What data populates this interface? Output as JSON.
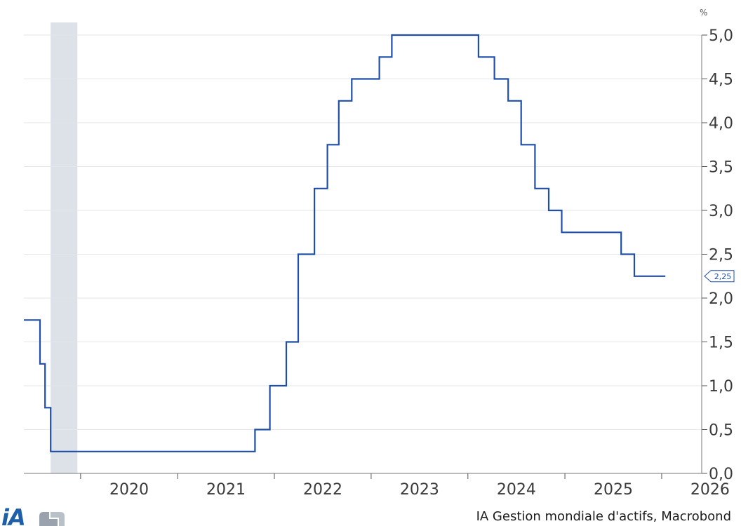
{
  "chart_data": {
    "type": "line",
    "step": true,
    "unit": "%",
    "series": [
      {
        "color": "#1f4fa8",
        "points": [
          [
            "2019-06-01",
            1.75
          ],
          [
            "2019-08-01",
            1.75
          ],
          [
            "2019-08-01",
            1.25
          ],
          [
            "2019-08-20",
            1.25
          ],
          [
            "2019-08-20",
            0.75
          ],
          [
            "2019-09-10",
            0.75
          ],
          [
            "2019-09-10",
            0.25
          ],
          [
            "2021-10-20",
            0.25
          ],
          [
            "2021-10-20",
            0.5
          ],
          [
            "2021-12-15",
            0.5
          ],
          [
            "2021-12-15",
            1.0
          ],
          [
            "2022-02-15",
            1.0
          ],
          [
            "2022-02-15",
            1.5
          ],
          [
            "2022-04-01",
            1.5
          ],
          [
            "2022-04-01",
            2.5
          ],
          [
            "2022-06-01",
            2.5
          ],
          [
            "2022-06-01",
            3.25
          ],
          [
            "2022-07-20",
            3.25
          ],
          [
            "2022-07-20",
            3.75
          ],
          [
            "2022-09-01",
            3.75
          ],
          [
            "2022-09-01",
            4.25
          ],
          [
            "2022-10-20",
            4.25
          ],
          [
            "2022-10-20",
            4.5
          ],
          [
            "2023-02-01",
            4.5
          ],
          [
            "2023-02-01",
            4.75
          ],
          [
            "2023-03-20",
            4.75
          ],
          [
            "2023-03-20",
            5.0
          ],
          [
            "2024-02-10",
            5.0
          ],
          [
            "2024-02-10",
            4.75
          ],
          [
            "2024-04-10",
            4.75
          ],
          [
            "2024-04-10",
            4.5
          ],
          [
            "2024-06-01",
            4.5
          ],
          [
            "2024-06-01",
            4.25
          ],
          [
            "2024-07-20",
            4.25
          ],
          [
            "2024-07-20",
            3.75
          ],
          [
            "2024-09-10",
            3.75
          ],
          [
            "2024-09-10",
            3.25
          ],
          [
            "2024-11-01",
            3.25
          ],
          [
            "2024-11-01",
            3.0
          ],
          [
            "2024-12-20",
            3.0
          ],
          [
            "2024-12-20",
            2.75
          ],
          [
            "2025-08-01",
            2.75
          ],
          [
            "2025-08-01",
            2.5
          ],
          [
            "2025-09-20",
            2.5
          ],
          [
            "2025-09-20",
            2.25
          ],
          [
            "2026-01-15",
            2.25
          ]
        ]
      }
    ],
    "recession_band": {
      "from": "2019-09-10",
      "to": "2019-12-20",
      "color": "#dde1e8"
    },
    "last_value_label": "2,25",
    "x_tick_labels": [
      "2020",
      "2021",
      "2022",
      "2023",
      "2024",
      "2025",
      "2026"
    ],
    "y_tick_labels": [
      "0,0",
      "0,5",
      "1,0",
      "1,5",
      "2,0",
      "2,5",
      "3,0",
      "3,5",
      "4,0",
      "4,5",
      "5,0"
    ],
    "y_ticks": [
      0,
      0.5,
      1.0,
      1.5,
      2.0,
      2.5,
      3.0,
      3.5,
      4.0,
      4.5,
      5.0
    ],
    "xlim": [
      "2019-06-01",
      "2026-06-01"
    ],
    "ylim": [
      0,
      5.0
    ],
    "grid": true,
    "y_axis_side": "right"
  },
  "source": "IA Gestion mondiale d'actifs, Macrobond",
  "logo": {
    "text": "iA",
    "color": "#1f5fa8"
  }
}
